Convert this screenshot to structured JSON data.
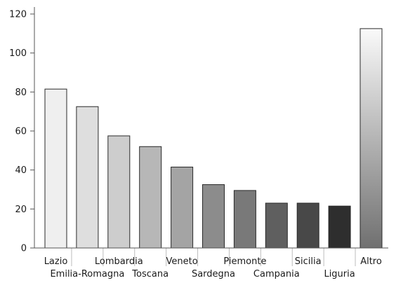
{
  "chart_data": {
    "type": "bar",
    "title": "",
    "xlabel": "",
    "ylabel": "",
    "categories": [
      "Lazio",
      "Emilia-Romagna",
      "Lombardia",
      "Toscana",
      "Veneto",
      "Sardegna",
      "Piemonte",
      "Campania",
      "Sicilia",
      "Liguria",
      "Altro"
    ],
    "values": [
      81.5,
      72.5,
      57.5,
      52,
      41.5,
      32.5,
      29.5,
      23,
      23,
      21.5,
      112.5
    ],
    "ylim": [
      0,
      120
    ],
    "yticks": [
      0,
      20,
      40,
      60,
      80,
      100,
      120
    ],
    "grid": false,
    "legend": "none",
    "label_rows": [
      "upper",
      "lower",
      "upper",
      "lower",
      "upper",
      "lower",
      "upper",
      "lower",
      "upper",
      "lower",
      "upper"
    ],
    "colors": {
      "bar_fills": [
        "#efefef",
        "#dedede",
        "#cdcdcd",
        "#b7b7b7",
        "#a4a4a4",
        "#8c8c8c",
        "#797979",
        "#5f5f5f",
        "#484848",
        "#2e2e2e"
      ],
      "gradient_top": "#fafafa",
      "gradient_bottom": "#707070",
      "bar_stroke": "#2a2a2a",
      "axis": "#555555"
    }
  }
}
